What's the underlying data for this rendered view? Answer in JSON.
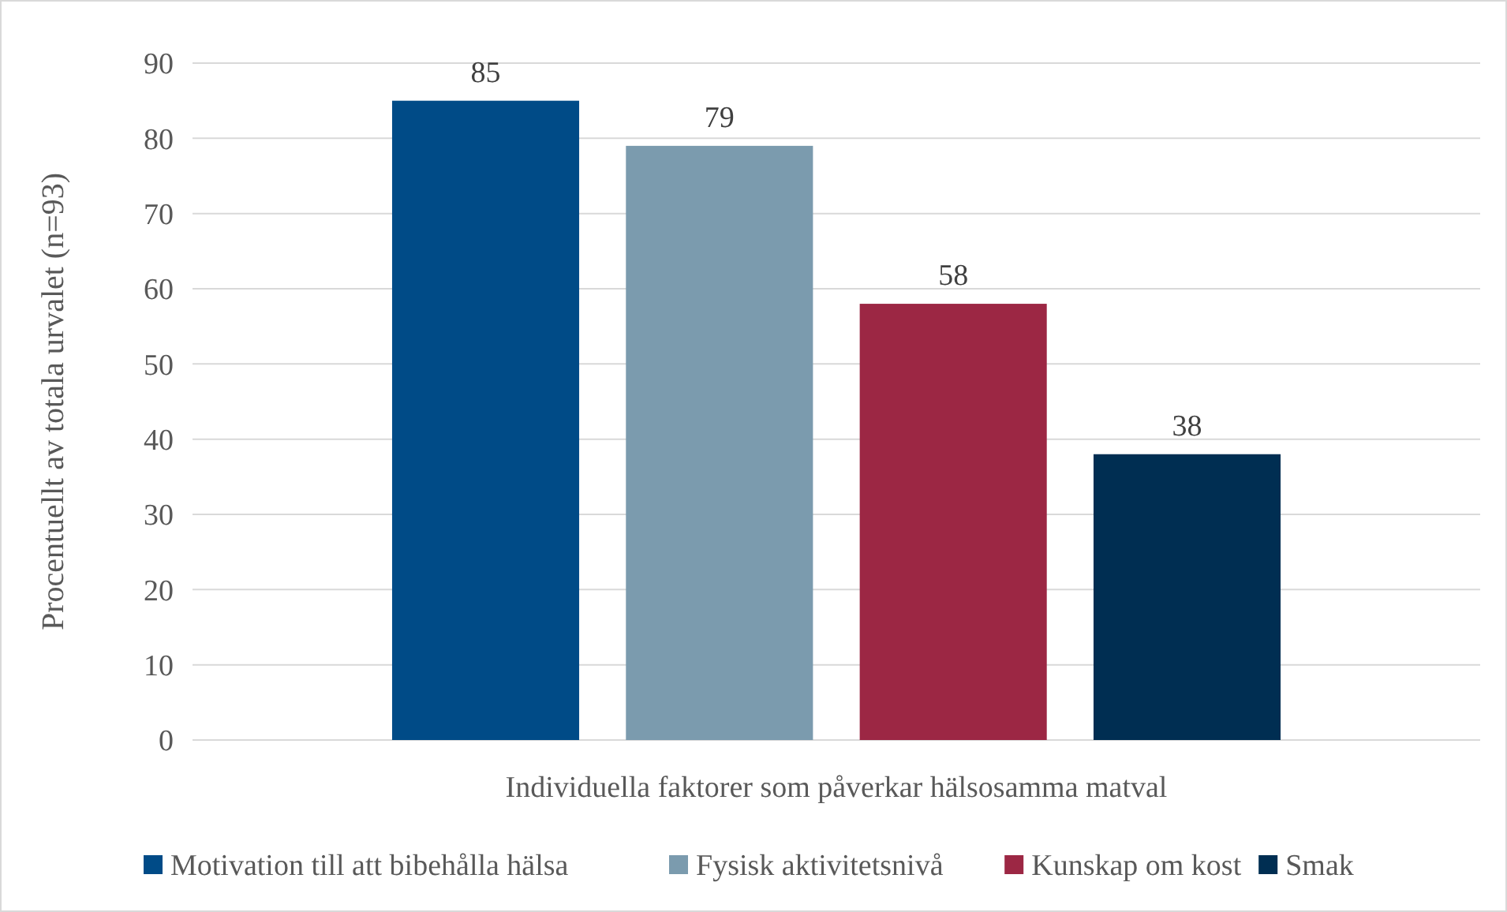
{
  "chart_data": {
    "type": "bar",
    "ylabel": "Procentuellt av totala urvalet (n=93)",
    "categories": [
      "Individuella faktorer som påverkar hälsosamma matval"
    ],
    "series": [
      {
        "name": "Motivation till att bibehålla hälsa",
        "color": "#004b87",
        "values": [
          85
        ]
      },
      {
        "name": "Fysisk aktivitetsnivå",
        "color": "#7b9bae",
        "values": [
          79
        ]
      },
      {
        "name": "Kunskap om kost",
        "color": "#9c2744",
        "values": [
          58
        ]
      },
      {
        "name": "Smak",
        "color": "#002e52",
        "values": [
          38
        ]
      }
    ],
    "ylim": [
      0,
      90
    ],
    "yticks": [
      0,
      10,
      20,
      30,
      40,
      50,
      60,
      70,
      80,
      90
    ],
    "grid": "y",
    "legend": "bottom",
    "data_labels": true
  }
}
